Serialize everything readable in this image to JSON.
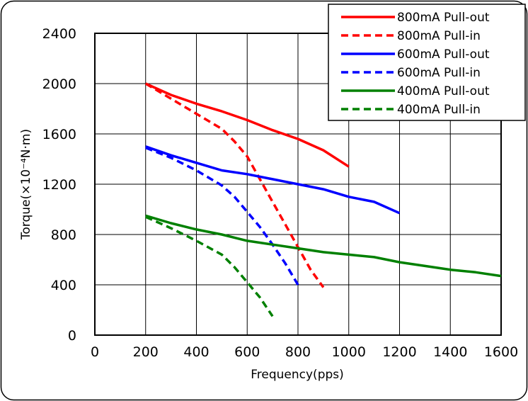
{
  "chart_data": {
    "type": "line",
    "title": "",
    "xlabel": "Frequency(pps)",
    "ylabel": "Torque(×10⁻⁴N·m)",
    "xlim": [
      0,
      1600
    ],
    "ylim": [
      0,
      2400
    ],
    "xticks": [
      0,
      200,
      400,
      600,
      800,
      1000,
      1200,
      1400,
      1600
    ],
    "yticks": [
      0,
      400,
      800,
      1200,
      1600,
      2000,
      2400
    ],
    "grid": true,
    "legend_position": "top-right",
    "series": [
      {
        "name": "800mA Pull-out",
        "color": "#ff0000",
        "dash": "solid",
        "x": [
          200,
          300,
          400,
          500,
          600,
          700,
          800,
          900,
          1000
        ],
        "y": [
          2000,
          1910,
          1840,
          1780,
          1710,
          1630,
          1560,
          1470,
          1340
        ]
      },
      {
        "name": "800mA Pull-in",
        "color": "#ff0000",
        "dash": "dashed",
        "x": [
          200,
          300,
          400,
          500,
          550,
          600,
          650,
          700,
          750,
          800,
          850,
          900
        ],
        "y": [
          2000,
          1880,
          1760,
          1640,
          1540,
          1420,
          1240,
          1060,
          880,
          700,
          520,
          380
        ]
      },
      {
        "name": "600mA Pull-out",
        "color": "#0000ff",
        "dash": "solid",
        "x": [
          200,
          300,
          400,
          500,
          600,
          700,
          800,
          900,
          1000,
          1100,
          1200
        ],
        "y": [
          1500,
          1430,
          1370,
          1310,
          1280,
          1240,
          1200,
          1160,
          1100,
          1060,
          970
        ]
      },
      {
        "name": "600mA Pull-in",
        "color": "#0000ff",
        "dash": "dashed",
        "x": [
          200,
          300,
          400,
          500,
          550,
          600,
          650,
          700,
          750,
          800
        ],
        "y": [
          1490,
          1410,
          1310,
          1190,
          1100,
          980,
          860,
          720,
          570,
          400
        ]
      },
      {
        "name": "400mA Pull-out",
        "color": "#008000",
        "dash": "solid",
        "x": [
          200,
          300,
          400,
          500,
          600,
          700,
          800,
          900,
          1000,
          1100,
          1200,
          1300,
          1400,
          1500,
          1600
        ],
        "y": [
          950,
          890,
          840,
          800,
          750,
          720,
          690,
          660,
          640,
          620,
          580,
          550,
          520,
          500,
          470
        ]
      },
      {
        "name": "400mA Pull-in",
        "color": "#008000",
        "dash": "dashed",
        "x": [
          200,
          300,
          400,
          500,
          550,
          600,
          650,
          700
        ],
        "y": [
          940,
          850,
          750,
          640,
          540,
          420,
          300,
          150
        ]
      }
    ]
  }
}
